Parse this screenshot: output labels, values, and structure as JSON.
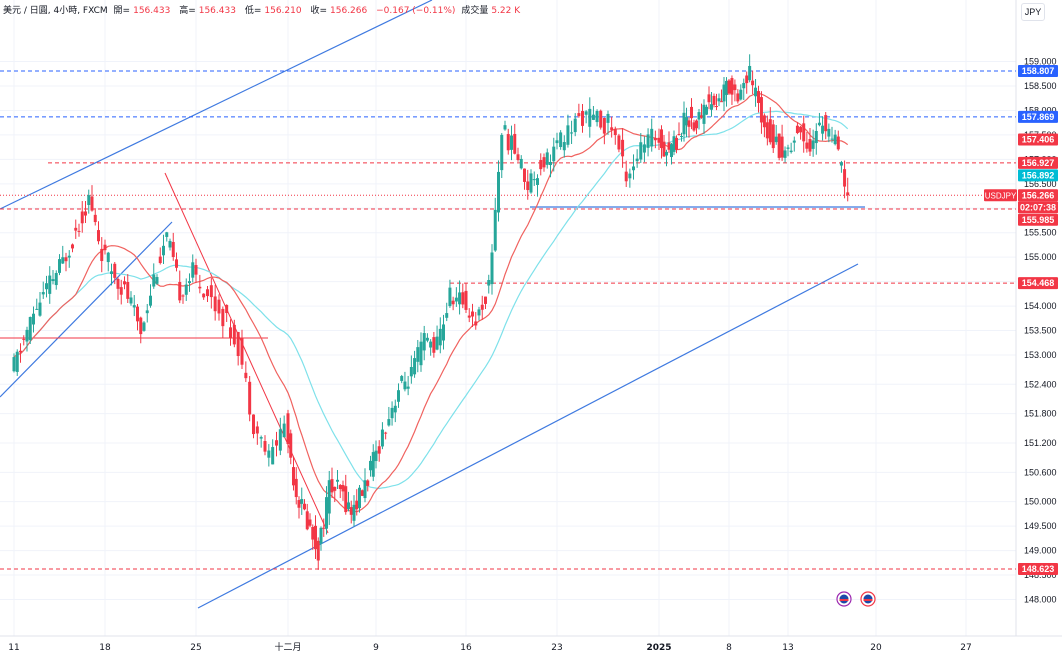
{
  "header": {
    "symbol": "美元 / 日圓, 4小時, FXCM",
    "open_label": "開=",
    "open": "156.433",
    "high_label": "高=",
    "high": "156.433",
    "low_label": "低=",
    "low": "156.210",
    "close_label": "收=",
    "close": "156.266",
    "change": "−0.167 (−0.11%)",
    "volume_label": "成交量",
    "volume": "5.22 K"
  },
  "currency_button": "JPY",
  "colors": {
    "up": "#26a69a",
    "down": "#f23645",
    "ma_red": "#f0625f",
    "ma_cyan": "#7ee1ea",
    "trendline": "#3f7ae0",
    "level": "#f23645",
    "blue_level": "#2962ff",
    "grid": "#f0f3fa"
  },
  "chart_data": {
    "type": "candlestick",
    "symbol": "USDJPY",
    "y_ticks": [
      148.0,
      148.5,
      149.0,
      149.5,
      150.0,
      150.6,
      151.2,
      151.8,
      152.4,
      153.0,
      153.5,
      154.0,
      154.5,
      155.0,
      155.5,
      156.0,
      156.5,
      157.0,
      157.5,
      158.0,
      158.5,
      159.0
    ],
    "y_tick_labels": [
      "148.000",
      "148.500",
      "149.000",
      "149.500",
      "150.000",
      "150.600",
      "151.200",
      "151.800",
      "152.400",
      "153.000",
      "153.500",
      "154.000",
      "154.500",
      "155.000",
      "155.500",
      "156.000",
      "156.500",
      "157.000",
      "157.500",
      "158.000",
      "158.500",
      "159.000"
    ],
    "ylim": [
      147.7,
      159.5
    ],
    "x_ticks": [
      {
        "label": "11",
        "day": 0
      },
      {
        "label": "18",
        "day": 7
      },
      {
        "label": "25",
        "day": 14
      },
      {
        "label": "十二月",
        "day": 20
      },
      {
        "label": "9",
        "day": 28
      },
      {
        "label": "16",
        "day": 35
      },
      {
        "label": "23",
        "day": 42
      },
      {
        "label": "2025",
        "day": 49
      },
      {
        "label": "8",
        "day": 56
      },
      {
        "label": "13",
        "day": 61
      },
      {
        "label": "20",
        "day": 68
      },
      {
        "label": "27",
        "day": 75
      }
    ],
    "price_labels": [
      {
        "text": "158.807",
        "value": 158.807,
        "bg": "#2962ff"
      },
      {
        "text": "157.869",
        "value": 157.869,
        "bg": "#2962ff"
      },
      {
        "text": "157.406",
        "value": 157.406,
        "bg": "#f23645"
      },
      {
        "text": "156.927",
        "value": 156.927,
        "bg": "#f23645"
      },
      {
        "text": "156.892",
        "value": 156.892,
        "bg": "#00bcd4"
      },
      {
        "text": "156.266",
        "value": 156.266,
        "bg": "#f23645"
      },
      {
        "text": "02:07:38",
        "value": 156.266,
        "bg": "#f23645"
      },
      {
        "text": "155.985",
        "value": 155.985,
        "bg": "#f23645"
      },
      {
        "text": "154.468",
        "value": 154.468,
        "bg": "#f23645"
      },
      {
        "text": "148.623",
        "value": 148.623,
        "bg": "#f23645"
      }
    ],
    "symbol_tag": "USDJPY",
    "horizontal_levels": [
      {
        "value": 158.807,
        "style": "dashed",
        "color": "#2962ff"
      },
      {
        "value": 157.869,
        "style": "dashed",
        "color": "#2962ff"
      },
      {
        "value": 156.927,
        "style": "dashed",
        "color": "#f23645"
      },
      {
        "value": 156.266,
        "style": "dotted",
        "color": "#f23645"
      },
      {
        "value": 155.985,
        "style": "dashed",
        "color": "#f23645"
      },
      {
        "value": 154.468,
        "style": "dashed",
        "color": "#f23645"
      },
      {
        "value": 148.623,
        "style": "dashed",
        "color": "#f23645"
      }
    ],
    "anchors": [
      {
        "day": 0,
        "price": 152.6
      },
      {
        "day": 2,
        "price": 154.0
      },
      {
        "day": 4,
        "price": 154.9
      },
      {
        "day": 6,
        "price": 156.2
      },
      {
        "day": 7,
        "price": 155.1
      },
      {
        "day": 9,
        "price": 154.2
      },
      {
        "day": 10,
        "price": 153.5
      },
      {
        "day": 11,
        "price": 154.6
      },
      {
        "day": 12,
        "price": 155.4
      },
      {
        "day": 13,
        "price": 154.3
      },
      {
        "day": 14,
        "price": 154.7
      },
      {
        "day": 16,
        "price": 153.8
      },
      {
        "day": 17,
        "price": 153.2
      },
      {
        "day": 18,
        "price": 151.6
      },
      {
        "day": 19,
        "price": 150.9
      },
      {
        "day": 20,
        "price": 151.6
      },
      {
        "day": 21,
        "price": 150.2
      },
      {
        "day": 22,
        "price": 149.6
      },
      {
        "day": 23,
        "price": 149.0
      },
      {
        "day": 24,
        "price": 150.3
      },
      {
        "day": 25,
        "price": 150.2
      },
      {
        "day": 26,
        "price": 149.8
      },
      {
        "day": 27,
        "price": 150.2
      },
      {
        "day": 28,
        "price": 150.8
      },
      {
        "day": 29,
        "price": 151.6
      },
      {
        "day": 30,
        "price": 152.3
      },
      {
        "day": 31,
        "price": 152.6
      },
      {
        "day": 32,
        "price": 153.3
      },
      {
        "day": 33,
        "price": 153.2
      },
      {
        "day": 34,
        "price": 154.2
      },
      {
        "day": 35,
        "price": 154.1
      },
      {
        "day": 36,
        "price": 153.7
      },
      {
        "day": 37,
        "price": 154.4
      },
      {
        "day": 38,
        "price": 157.6
      },
      {
        "day": 39,
        "price": 157.2
      },
      {
        "day": 40,
        "price": 156.5
      },
      {
        "day": 41,
        "price": 156.9
      },
      {
        "day": 42,
        "price": 157.2
      },
      {
        "day": 44,
        "price": 157.9
      },
      {
        "day": 46,
        "price": 157.7
      },
      {
        "day": 47,
        "price": 156.7
      },
      {
        "day": 48,
        "price": 157.2
      },
      {
        "day": 49,
        "price": 157.5
      },
      {
        "day": 50,
        "price": 157.2
      },
      {
        "day": 51,
        "price": 157.4
      },
      {
        "day": 52,
        "price": 157.9
      },
      {
        "day": 53,
        "price": 157.7
      },
      {
        "day": 54,
        "price": 158.2
      },
      {
        "day": 55,
        "price": 158.1
      },
      {
        "day": 56,
        "price": 158.5
      },
      {
        "day": 57,
        "price": 158.4
      },
      {
        "day": 58,
        "price": 158.7
      },
      {
        "day": 59,
        "price": 157.9
      },
      {
        "day": 60,
        "price": 157.4
      },
      {
        "day": 61,
        "price": 157.1
      },
      {
        "day": 62,
        "price": 157.6
      },
      {
        "day": 63,
        "price": 157.3
      },
      {
        "day": 64,
        "price": 157.8
      },
      {
        "day": 65,
        "price": 157.3
      },
      {
        "day": 66,
        "price": 156.3
      }
    ]
  }
}
